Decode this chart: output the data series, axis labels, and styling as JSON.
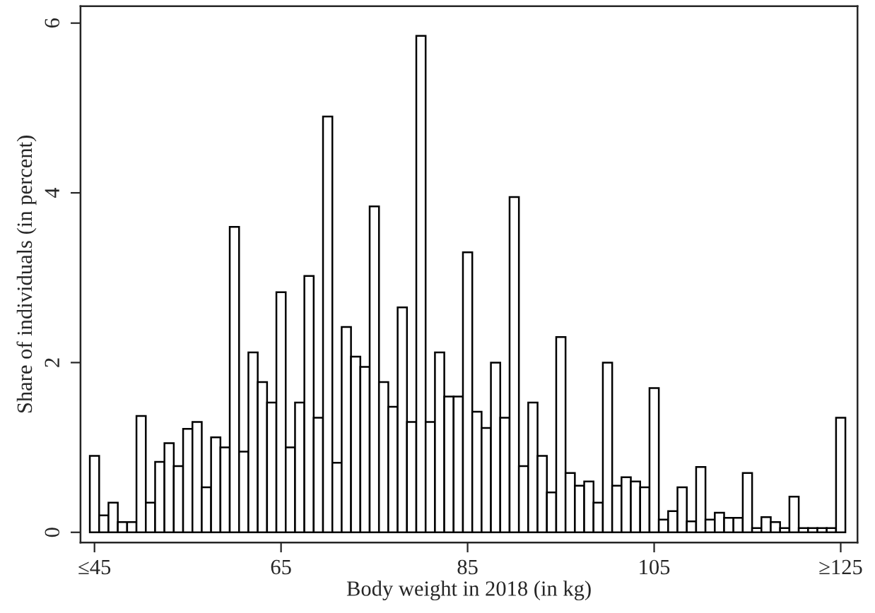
{
  "chart_data": {
    "type": "histogram",
    "xlabel": "Body weight in 2018 (in kg)",
    "ylabel": "Share of individuals (in percent)",
    "bins": [
      44.5,
      45.5,
      46.5,
      47.5,
      48.5,
      49.5,
      50.5,
      51.5,
      52.5,
      53.5,
      54.5,
      55.5,
      56.5,
      57.5,
      58.5,
      59.5,
      60.5,
      61.5,
      62.5,
      63.5,
      64.5,
      65.5,
      66.5,
      67.5,
      68.5,
      69.5,
      70.5,
      71.5,
      72.5,
      73.5,
      74.5,
      75.5,
      76.5,
      77.5,
      78.5,
      79.5,
      80.5,
      81.5,
      82.5,
      83.5,
      84.5,
      85.5,
      86.5,
      87.5,
      88.5,
      89.5,
      90.5,
      91.5,
      92.5,
      93.5,
      94.5,
      95.5,
      96.5,
      97.5,
      98.5,
      99.5,
      100.5,
      101.5,
      102.5,
      103.5,
      104.5,
      105.5,
      106.5,
      107.5,
      108.5,
      109.5,
      110.5,
      111.5,
      112.5,
      113.5,
      114.5,
      115.5,
      116.5,
      117.5,
      118.5,
      119.5,
      120.5,
      121.5,
      122.5,
      123.5,
      124.5,
      125.5
    ],
    "values": [
      0.9,
      0.2,
      0.35,
      0.12,
      0.12,
      1.37,
      0.35,
      0.83,
      1.05,
      0.78,
      1.22,
      1.3,
      0.53,
      1.12,
      1.0,
      3.6,
      0.95,
      2.12,
      1.77,
      1.53,
      2.83,
      1.0,
      1.53,
      3.02,
      1.35,
      4.9,
      0.82,
      2.42,
      2.07,
      1.95,
      3.84,
      1.77,
      1.48,
      2.65,
      1.3,
      5.85,
      1.3,
      2.12,
      1.6,
      1.6,
      3.3,
      1.42,
      1.23,
      2.0,
      1.35,
      3.95,
      0.78,
      1.53,
      0.9,
      0.47,
      2.3,
      0.7,
      0.55,
      0.6,
      0.35,
      2.0,
      0.55,
      0.65,
      0.6,
      0.53,
      1.7,
      0.15,
      0.25,
      0.53,
      0.13,
      0.77,
      0.15,
      0.23,
      0.17,
      0.17,
      0.7,
      0.05,
      0.18,
      0.12,
      0.05,
      0.42,
      0.05,
      0.05,
      0.05,
      0.05,
      1.35
    ],
    "color": "#ffffff",
    "xlim": [
      43.5,
      126.8
    ],
    "ylim": [
      -0.12,
      6.2
    ],
    "xticks": [
      {
        "value": 45,
        "label": "≤45"
      },
      65,
      85,
      105,
      {
        "value": 125,
        "label": "≥125"
      }
    ],
    "yticks": [
      0,
      2,
      4,
      6
    ],
    "grid": false,
    "legend": false
  }
}
